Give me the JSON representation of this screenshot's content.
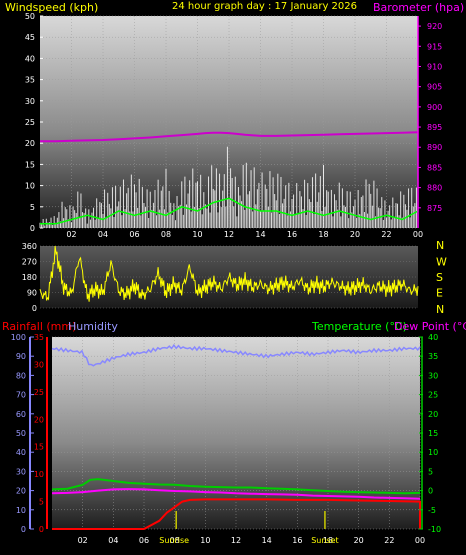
{
  "header": {
    "windspeed_label": "Windspeed (kph)",
    "graph_title": "24 hour graph day : 17 January 2026",
    "barometer_label": "Barometer (hpa)"
  },
  "bottom_header": {
    "rainfall_label": "Rainfall (mm)",
    "humidity_label": "Humidity",
    "temperature_label": "Temperature (°C)",
    "dewpoint_label": "Dew Point (°C)"
  },
  "sun_labels": {
    "sunrise": "Sunrise",
    "sunset": "Sunset"
  },
  "colors": {
    "wind_gust": "#ffffff",
    "wind_avg": "#00ff00",
    "barometer": "#cc00cc",
    "direction": "#ffff00",
    "temperature": "#00cc00",
    "dewpoint": "#ff00ff",
    "humidity": "#8888ff",
    "rainfall": "#ff0000",
    "label_yellow": "#ffff00",
    "label_magenta": "#ff00ff",
    "label_green": "#00ff00",
    "label_red": "#ff0000",
    "label_blue": "#9999ff"
  },
  "chart_data": [
    {
      "type": "line",
      "name": "wind-barometer",
      "title": "24 hour graph day : 17 January 2026",
      "x_ticks": [
        "02",
        "04",
        "06",
        "08",
        "10",
        "12",
        "14",
        "16",
        "18",
        "20",
        "22",
        "00"
      ],
      "x_range_hours": [
        0,
        24
      ],
      "ylabel_left": "Windspeed (kph)",
      "ylim_left": [
        0,
        50
      ],
      "yticks_left": [
        0,
        5,
        10,
        15,
        20,
        25,
        30,
        35,
        40,
        45,
        50
      ],
      "ylabel_right": "Barometer (hpa)",
      "ylim_right": [
        870,
        922.5
      ],
      "yticks_right": [
        875,
        880,
        885,
        890,
        895,
        900,
        905,
        910,
        915,
        920
      ],
      "series": [
        {
          "name": "Barometer",
          "axis": "right",
          "x": [
            0,
            1,
            2,
            3,
            4,
            5,
            6,
            7,
            8,
            9,
            10,
            10.5,
            11,
            11.5,
            12,
            12.5,
            13,
            14,
            15,
            16,
            17,
            18,
            19,
            20,
            21,
            22,
            23,
            24
          ],
          "values": [
            891.5,
            891.5,
            891.6,
            891.7,
            891.8,
            892,
            892.2,
            892.4,
            892.7,
            893,
            893.3,
            893.5,
            893.6,
            893.6,
            893.5,
            893.3,
            893.1,
            892.8,
            892.8,
            892.9,
            893,
            893.1,
            893.2,
            893.3,
            893.4,
            893.5,
            893.6,
            893.7
          ]
        },
        {
          "name": "Wind gust",
          "axis": "left",
          "x": [
            0,
            1,
            1.5,
            2,
            2.5,
            3,
            4,
            5,
            6,
            7,
            8,
            8.5,
            9,
            10,
            10.5,
            11,
            11.5,
            12,
            12.5,
            13,
            14,
            15,
            16,
            17,
            18,
            18.5,
            19,
            20,
            21,
            22,
            23,
            24
          ],
          "values": [
            2,
            3,
            7,
            5,
            10,
            4,
            9,
            11,
            13,
            9,
            14,
            6,
            12,
            15,
            9,
            18,
            12,
            21,
            10,
            17,
            13,
            14,
            10,
            12,
            15,
            9,
            11,
            8,
            13,
            6,
            9,
            11
          ]
        },
        {
          "name": "Wind average",
          "axis": "left",
          "x": [
            0,
            1,
            2,
            3,
            4,
            5,
            6,
            7,
            8,
            9,
            10,
            11,
            12,
            13,
            14,
            15,
            16,
            17,
            18,
            19,
            20,
            21,
            22,
            23,
            24
          ],
          "values": [
            1,
            1,
            2,
            3,
            2,
            4,
            3,
            4,
            3,
            5,
            4,
            6,
            7,
            5,
            4,
            4,
            3,
            4,
            3,
            4,
            3,
            2,
            3,
            2,
            4
          ]
        }
      ]
    },
    {
      "type": "scatter",
      "name": "wind-direction",
      "ylim": [
        0,
        360
      ],
      "yticks": [
        0,
        90,
        180,
        270,
        360
      ],
      "compass_labels": [
        "N",
        "W",
        "S",
        "E",
        "N"
      ],
      "series": [
        {
          "name": "Wind direction",
          "x": [
            0,
            0.5,
            1,
            1.5,
            2,
            2.5,
            3,
            3.5,
            4,
            4.5,
            5,
            5.5,
            6,
            6.5,
            7,
            7.5,
            8,
            8.5,
            9,
            9.5,
            10,
            10.5,
            11,
            11.5,
            12,
            12.5,
            13,
            13.5,
            14,
            14.5,
            15,
            15.5,
            16,
            16.5,
            17,
            17.5,
            18,
            18.5,
            19,
            19.5,
            20,
            20.5,
            21,
            21.5,
            22,
            22.5,
            23,
            23.5,
            24
          ],
          "values": [
            90,
            60,
            340,
            120,
            80,
            300,
            70,
            110,
            90,
            260,
            100,
            80,
            130,
            70,
            110,
            200,
            90,
            140,
            100,
            240,
            90,
            120,
            150,
            110,
            180,
            130,
            160,
            120,
            140,
            110,
            130,
            150,
            120,
            160,
            110,
            140,
            120,
            150,
            130,
            110,
            120,
            140,
            100,
            130,
            110,
            120,
            140,
            100,
            110
          ]
        }
      ]
    },
    {
      "type": "line",
      "name": "temperature-humidity-rain",
      "x_ticks": [
        "02",
        "04",
        "06",
        "08",
        "10",
        "12",
        "14",
        "16",
        "18",
        "20",
        "22",
        "00"
      ],
      "x_range_hours": [
        0,
        24
      ],
      "ylabel_left_outer": "Humidity",
      "ylim_left_outer": [
        0,
        100
      ],
      "yticks_left_outer": [
        0,
        10,
        20,
        30,
        40,
        50,
        60,
        70,
        80,
        90,
        100
      ],
      "ylabel_left_inner": "Rainfall (mm)",
      "ylim_left_inner": [
        0,
        35
      ],
      "yticks_left_inner": [
        0,
        5,
        10,
        15,
        20,
        25,
        30,
        35
      ],
      "ylabel_right": "Temperature (°C)",
      "ylim_right": [
        -10,
        40
      ],
      "yticks_right": [
        -10,
        -5,
        0,
        5,
        10,
        15,
        20,
        25,
        30,
        35,
        40
      ],
      "sunrise_hour": 8.1,
      "sunset_hour": 17.8,
      "series": [
        {
          "name": "Humidity",
          "axis": "left_outer",
          "x": [
            0,
            1,
            2,
            2.5,
            3,
            4,
            5,
            6,
            7,
            8,
            9,
            10,
            11,
            12,
            13,
            14,
            15,
            16,
            17,
            18,
            19,
            20,
            21,
            22,
            23,
            24
          ],
          "values": [
            94,
            93,
            92,
            85,
            86,
            89,
            91,
            92,
            94,
            95,
            94,
            94,
            93,
            92,
            91,
            90,
            91,
            92,
            91,
            92,
            93,
            92,
            93,
            93,
            94,
            94
          ]
        },
        {
          "name": "Temperature",
          "axis": "right",
          "x": [
            0,
            1,
            2,
            2.5,
            3,
            4,
            5,
            6,
            7,
            8,
            9,
            10,
            11,
            12,
            13,
            14,
            15,
            16,
            17,
            18,
            19,
            20,
            21,
            22,
            23,
            24
          ],
          "values": [
            0.3,
            0.5,
            1.5,
            2.8,
            3,
            2.5,
            2,
            1.8,
            1.6,
            1.5,
            1.2,
            1,
            0.9,
            0.8,
            0.8,
            0.6,
            0.5,
            0.3,
            0.1,
            -0.1,
            -0.3,
            -0.4,
            -0.5,
            -0.6,
            -0.7,
            -0.6
          ]
        },
        {
          "name": "Dew Point",
          "axis": "right",
          "x": [
            0,
            1,
            2,
            3,
            4,
            5,
            6,
            7,
            8,
            9,
            10,
            11,
            12,
            13,
            14,
            15,
            16,
            17,
            18,
            19,
            20,
            21,
            22,
            23,
            24
          ],
          "values": [
            -0.7,
            -0.6,
            -0.4,
            0,
            0.3,
            0.4,
            0.3,
            0.1,
            -0.1,
            -0.2,
            -0.4,
            -0.5,
            -0.7,
            -0.8,
            -0.9,
            -1,
            -1.1,
            -1.3,
            -1.4,
            -1.5,
            -1.6,
            -1.8,
            -1.9,
            -2,
            -2.1
          ]
        },
        {
          "name": "Rainfall",
          "axis": "left_inner",
          "x": [
            0,
            6,
            7,
            7.5,
            8,
            8.5,
            9,
            10,
            12,
            14,
            16,
            18,
            20,
            22,
            24,
            24
          ],
          "values": [
            0,
            0,
            1.5,
            3,
            4,
            5,
            5.3,
            5.4,
            5.4,
            5.4,
            5.3,
            5.3,
            5.2,
            5.1,
            5,
            0
          ]
        }
      ]
    }
  ]
}
